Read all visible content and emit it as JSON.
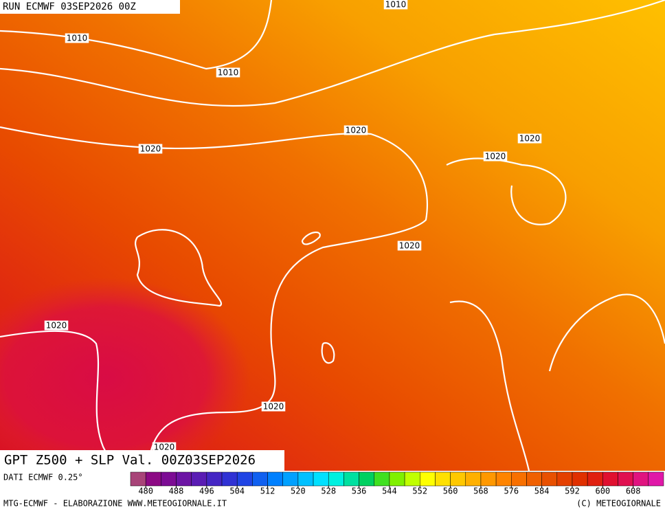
{
  "header": {
    "run": "RUN ECMWF 03SEP2026 00Z"
  },
  "isobar_labels": [
    "1010",
    "1010",
    "1010",
    "1020",
    "1020",
    "1020",
    "1020",
    "1020",
    "1020",
    "1020",
    "1020"
  ],
  "map_title": "GPT Z500 + SLP Val. 00Z03SEP2026",
  "data_source": "DATI ECMWF 0.25°",
  "colorbar": {
    "lim": [
      476,
      616
    ],
    "ticks": [
      480,
      488,
      496,
      504,
      512,
      520,
      528,
      536,
      544,
      552,
      560,
      568,
      576,
      584,
      592,
      600,
      608
    ],
    "colors": [
      "#a84478",
      "#8c0a84",
      "#7c0c94",
      "#6c14a4",
      "#5a1cb4",
      "#4426c4",
      "#3032d4",
      "#2044e4",
      "#1060f0",
      "#0080ff",
      "#00a0ff",
      "#00c0ff",
      "#00e0ff",
      "#00f0e0",
      "#00e0a0",
      "#00d060",
      "#40e020",
      "#80f000",
      "#c0ff00",
      "#ffff00",
      "#ffe000",
      "#ffc800",
      "#ffb000",
      "#ff9800",
      "#ff8400",
      "#f87000",
      "#f06000",
      "#e85000",
      "#e44000",
      "#e03000",
      "#e02010",
      "#e01030",
      "#e01050",
      "#e01480",
      "#e018a8"
    ]
  },
  "footer": {
    "left": "MTG-ECMWF - ELABORAZIONE WWW.METEOGIORNALE.IT",
    "right": "(C) METEOGIORNALE"
  }
}
